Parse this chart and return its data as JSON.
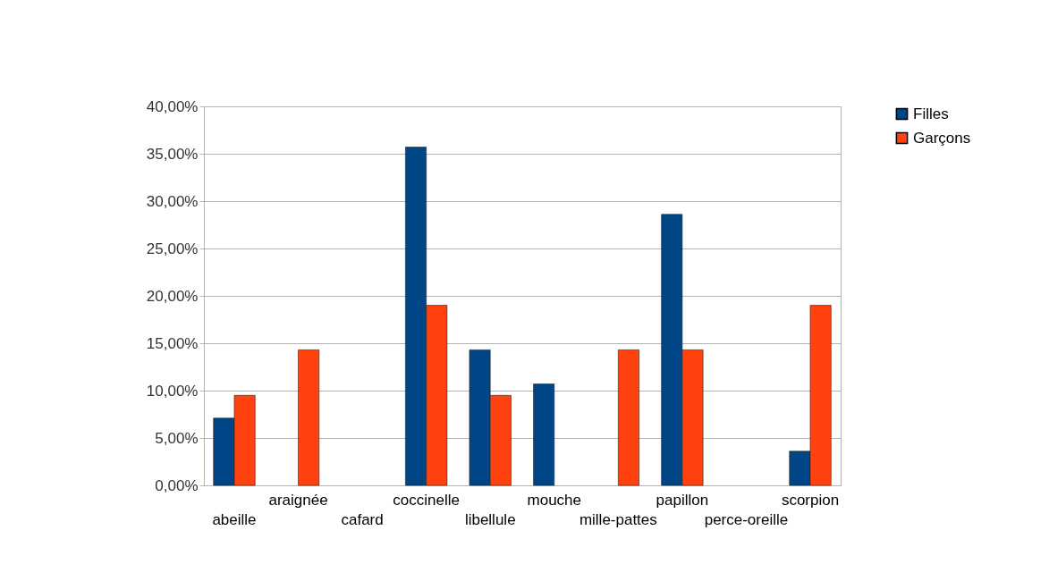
{
  "chart_data": {
    "type": "bar",
    "categories": [
      "abeille",
      "araignée",
      "cafard",
      "coccinelle",
      "libellule",
      "mouche",
      "mille-pattes",
      "papillon",
      "perce-oreille",
      "scorpion"
    ],
    "series": [
      {
        "name": "Filles",
        "color": "#004586",
        "values": [
          7.1,
          null,
          null,
          35.7,
          14.3,
          10.7,
          null,
          28.6,
          null,
          3.6
        ]
      },
      {
        "name": "Garçons",
        "color": "#ff420e",
        "values": [
          9.5,
          14.3,
          null,
          19,
          9.5,
          null,
          14.3,
          14.3,
          null,
          19
        ]
      }
    ],
    "ylim": [
      0,
      40
    ],
    "yticks": [
      {
        "value": 0,
        "label": "0,00%"
      },
      {
        "value": 5,
        "label": "5,00%"
      },
      {
        "value": 10,
        "label": "10,00%"
      },
      {
        "value": 15,
        "label": "15,00%"
      },
      {
        "value": 20,
        "label": "20,00%"
      },
      {
        "value": 25,
        "label": "25,00%"
      },
      {
        "value": 30,
        "label": "30,00%"
      },
      {
        "value": 35,
        "label": "35,00%"
      },
      {
        "value": 40,
        "label": "40,00%"
      }
    ],
    "grid": "y",
    "legend": "right"
  }
}
